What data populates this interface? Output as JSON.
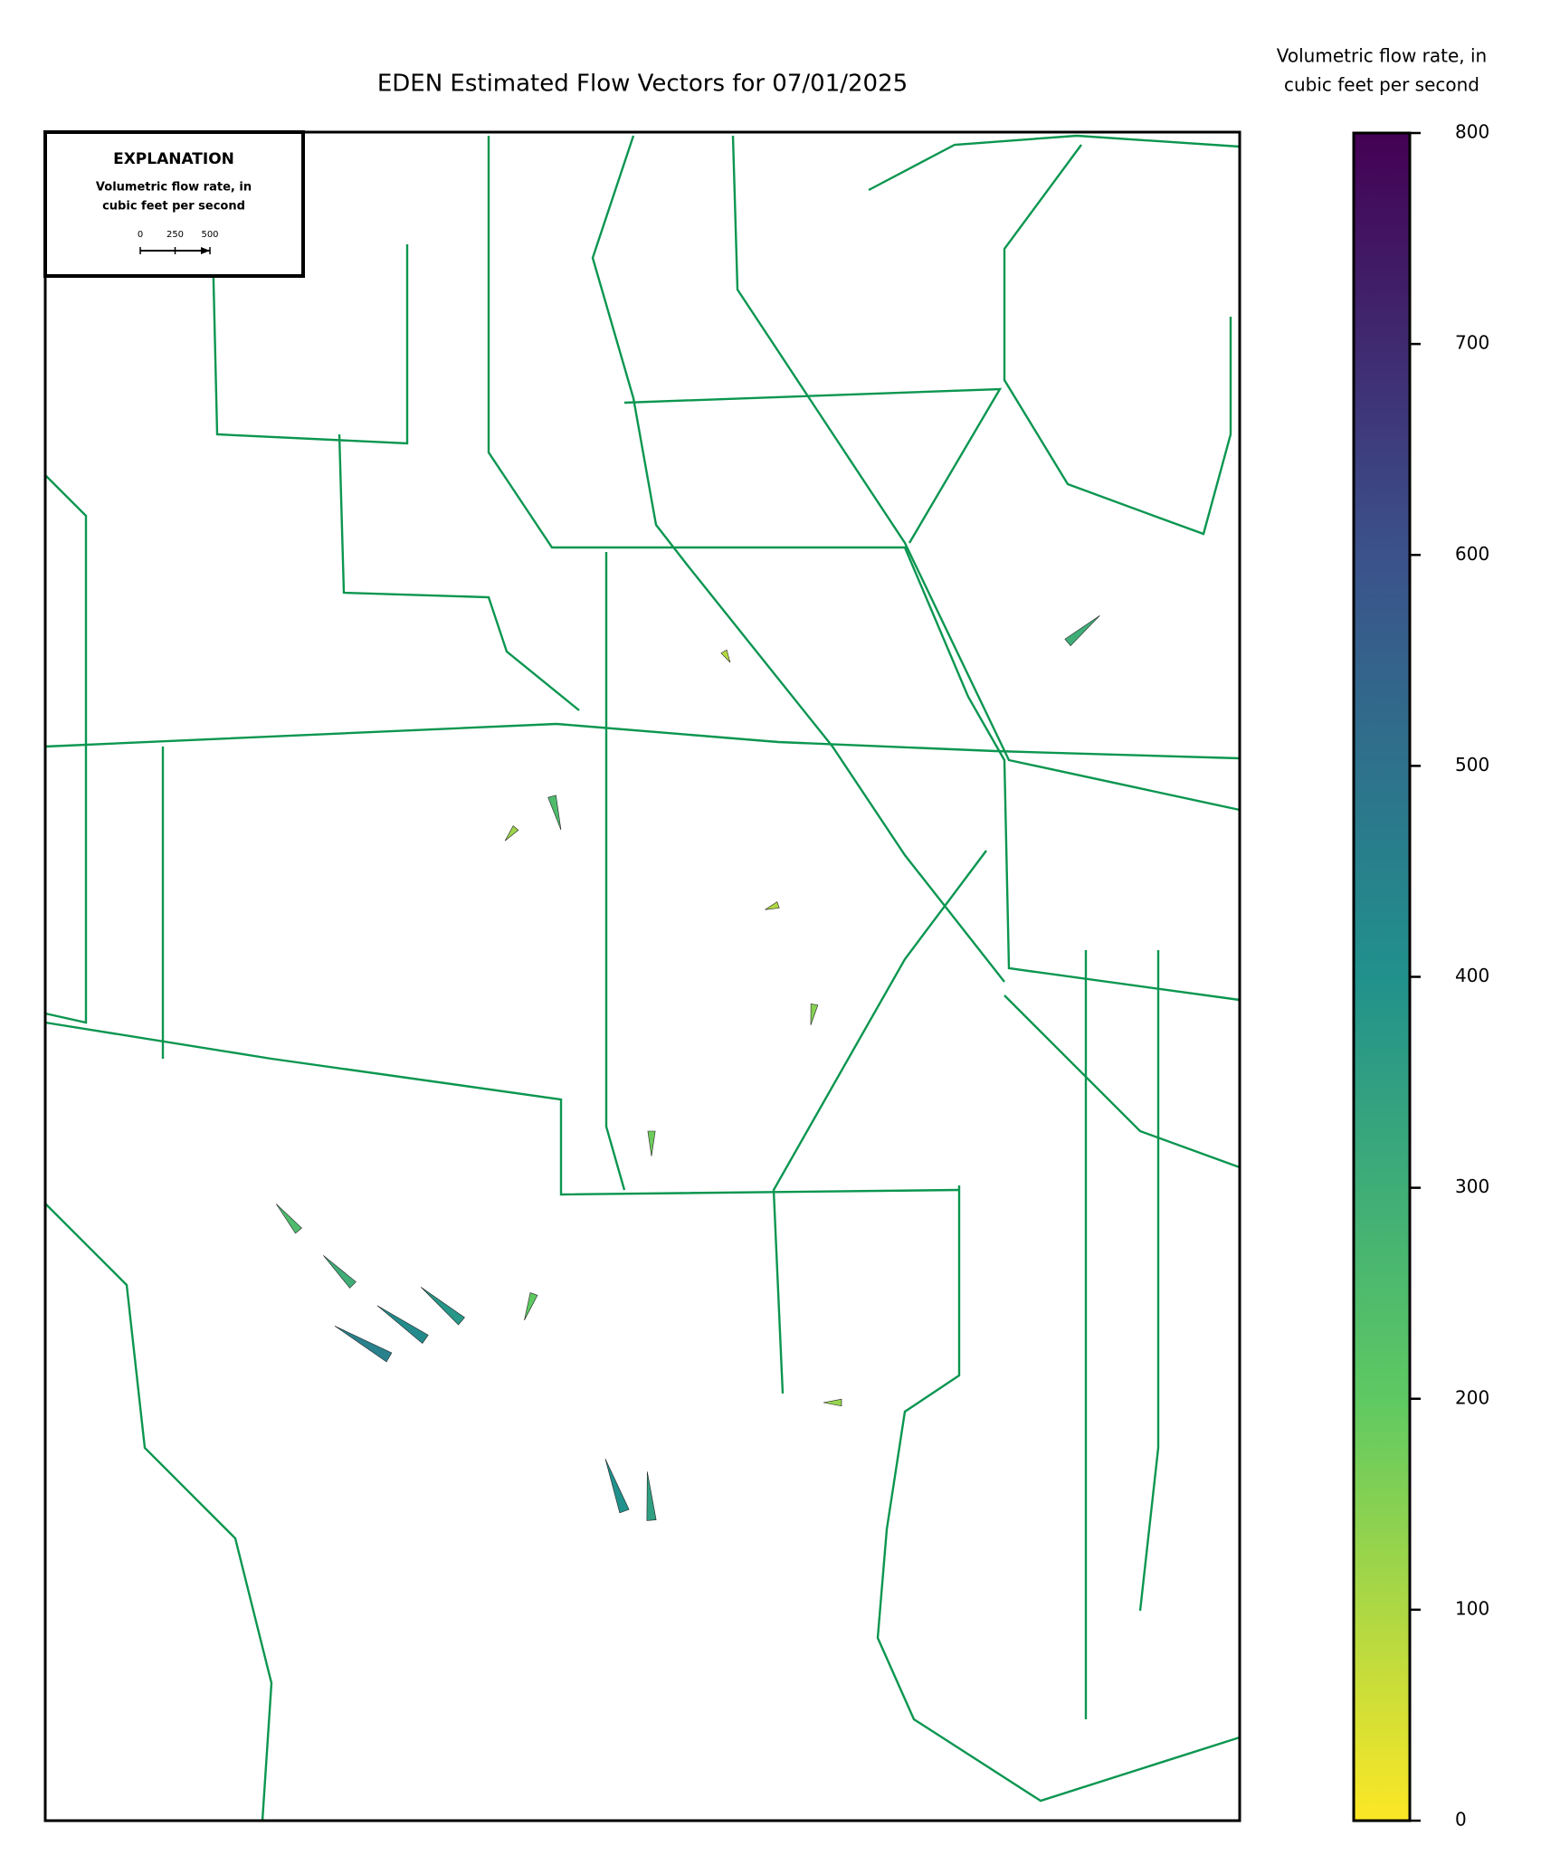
{
  "chart_data": {
    "type": "vector_map",
    "title": "EDEN Estimated Flow Vectors for 07/01/2025",
    "colorbar_label": [
      "Volumetric flow rate, in",
      "cubic feet per second"
    ],
    "clim": [
      0,
      800
    ],
    "colorbar_ticks": [
      0,
      100,
      200,
      300,
      400,
      500,
      600,
      700,
      800
    ],
    "colormap": [
      "#fde725",
      "#5ec962",
      "#21918c",
      "#3b528b",
      "#440154"
    ],
    "explanation": {
      "title": "EXPLANATION",
      "label": [
        "Volumetric flow rate, in",
        "cubic feet per second"
      ],
      "scale_ticks": [
        0,
        250,
        500
      ]
    },
    "vectors": [
      {
        "magnitude": 450,
        "direction": 150
      },
      {
        "magnitude": 420,
        "direction": 145
      },
      {
        "magnitude": 380,
        "direction": 140
      },
      {
        "magnitude": 300,
        "direction": 135
      },
      {
        "magnitude": 250,
        "direction": 130
      },
      {
        "magnitude": 400,
        "direction": 110
      },
      {
        "magnitude": 350,
        "direction": 95
      },
      {
        "magnitude": 200,
        "direction": 250
      },
      {
        "magnitude": 150,
        "direction": 260
      },
      {
        "magnitude": 180,
        "direction": 270
      },
      {
        "magnitude": 120,
        "direction": 230
      },
      {
        "magnitude": 250,
        "direction": 285
      },
      {
        "magnitude": 100,
        "direction": 200
      },
      {
        "magnitude": 300,
        "direction": 40
      },
      {
        "magnitude": 130,
        "direction": 180
      },
      {
        "magnitude": 90,
        "direction": 300
      }
    ]
  }
}
